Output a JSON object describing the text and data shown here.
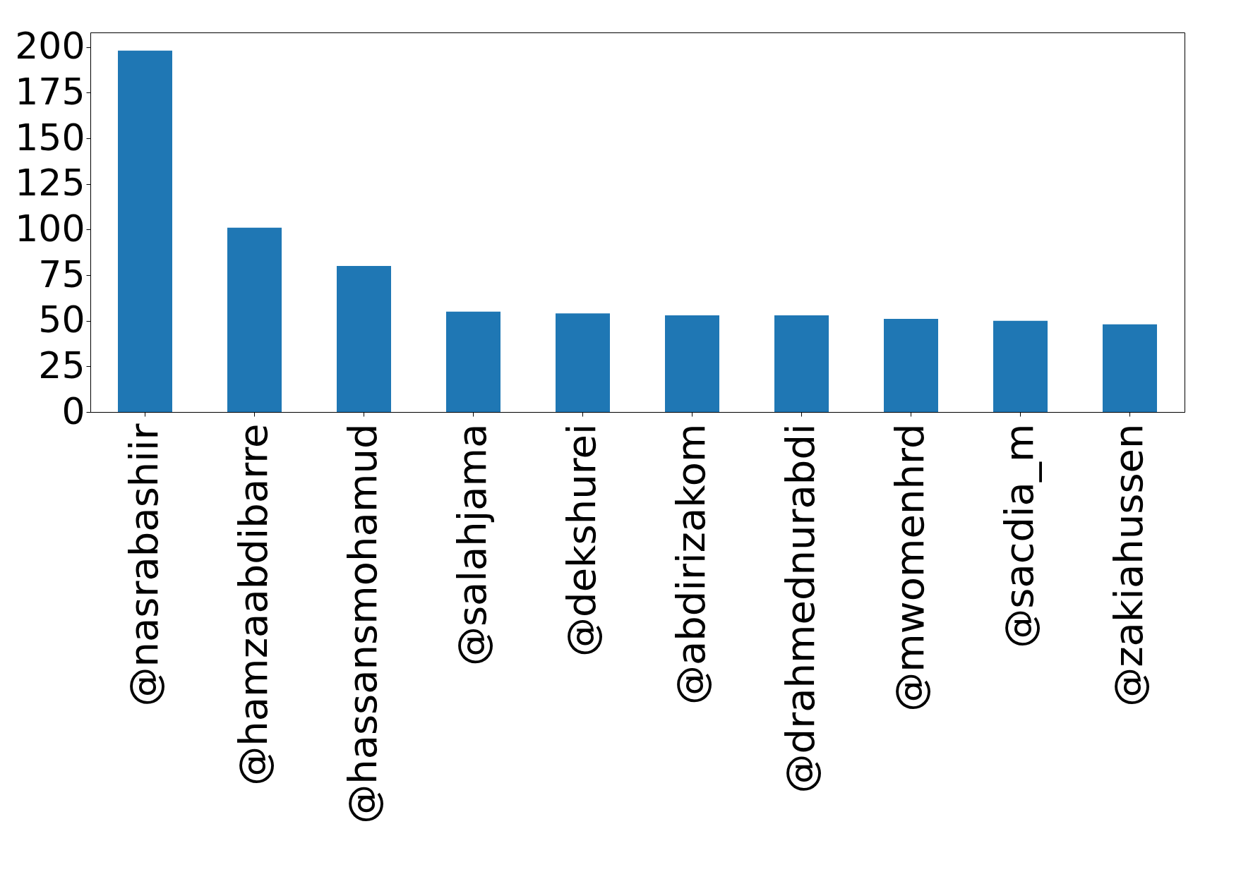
{
  "chart_data": {
    "type": "bar",
    "categories": [
      "@nasrabashiir",
      "@hamzaabdibarre",
      "@hassansmohamud",
      "@salahjama",
      "@dekshurei",
      "@abdirizakom",
      "@drahmednurabdi",
      "@mwomenhrd",
      "@sacdia_m",
      "@zakiahussen"
    ],
    "values": [
      198,
      101,
      80,
      55,
      54,
      53,
      53,
      51,
      50,
      48
    ],
    "color": "#1f77b4",
    "ylim": [
      0,
      208
    ],
    "yticks": [
      0,
      25,
      50,
      75,
      100,
      125,
      150,
      175,
      200
    ],
    "grid": false
  }
}
